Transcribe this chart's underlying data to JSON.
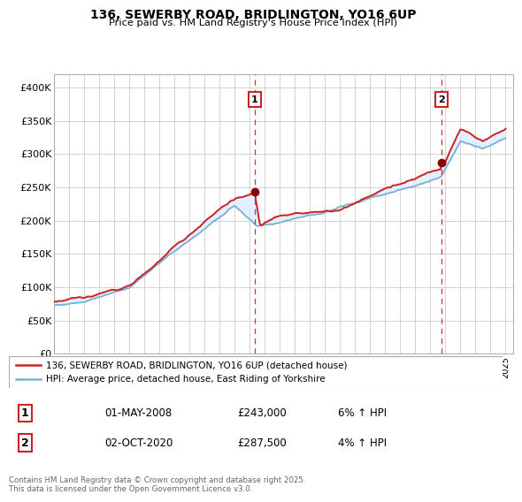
{
  "title": "136, SEWERBY ROAD, BRIDLINGTON, YO16 6UP",
  "subtitle": "Price paid vs. HM Land Registry's House Price Index (HPI)",
  "ylim": [
    0,
    420000
  ],
  "yticks": [
    0,
    50000,
    100000,
    150000,
    200000,
    250000,
    300000,
    350000,
    400000
  ],
  "ytick_labels": [
    "£0",
    "£50K",
    "£100K",
    "£150K",
    "£200K",
    "£250K",
    "£300K",
    "£350K",
    "£400K"
  ],
  "x_start_year": 1995,
  "x_end_year": 2025,
  "hpi_color": "#7bafd4",
  "fill_color": "#ddeeff",
  "price_color": "#cc2222",
  "marker_color": "#8b0000",
  "vline_color": "#cc3333",
  "sale1_year": 2008.333,
  "sale1_price": 243000,
  "sale2_year": 2020.75,
  "sale2_price": 287500,
  "legend_line1": "136, SEWERBY ROAD, BRIDLINGTON, YO16 6UP (detached house)",
  "legend_line2": "HPI: Average price, detached house, East Riding of Yorkshire",
  "footnote": "Contains HM Land Registry data © Crown copyright and database right 2025.\nThis data is licensed under the Open Government Licence v3.0.",
  "grid_color": "#cccccc",
  "table_row1_label": "1",
  "table_row1_date": "01-MAY-2008",
  "table_row1_price": "£243,000",
  "table_row1_hpi": "6% ↑ HPI",
  "table_row2_label": "2",
  "table_row2_date": "02-OCT-2020",
  "table_row2_price": "£287,500",
  "table_row2_hpi": "4% ↑ HPI"
}
